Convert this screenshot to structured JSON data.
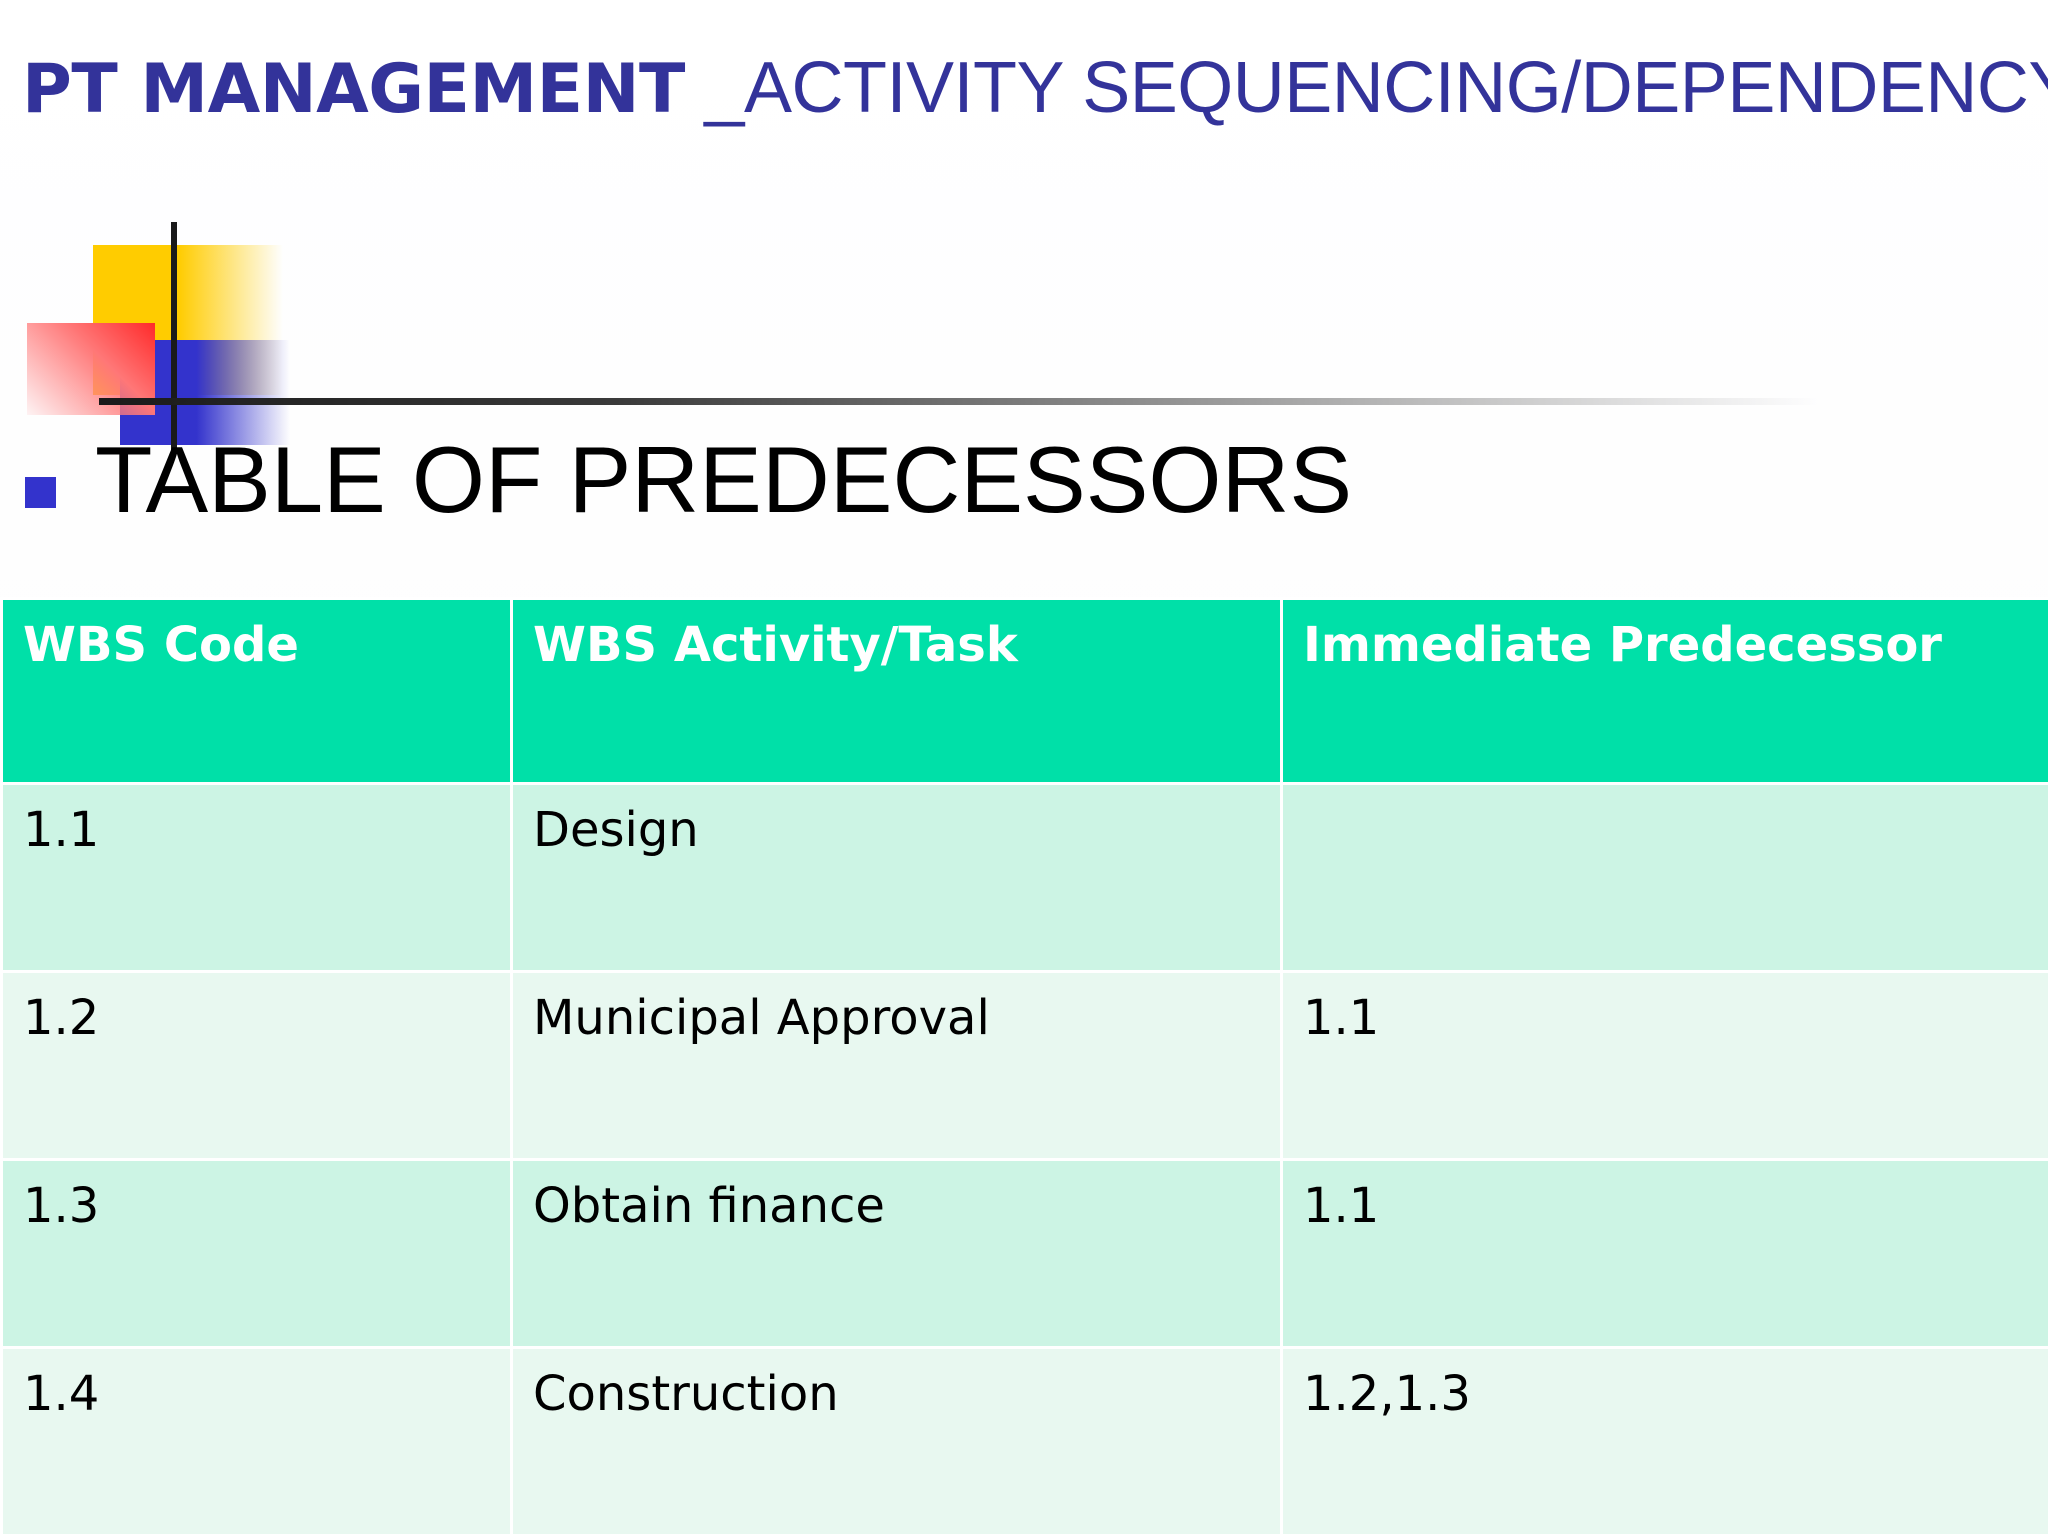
{
  "slide": {
    "title_bold": "PT MANAGEMENT",
    "title_rest": " _ACTIVITY SEQUENCING/DEPENDENCY",
    "bullet_text": "TABLE OF PREDECESSORS"
  },
  "colors": {
    "title": "#33339a",
    "header_bg": "#00e0a8",
    "row_odd_bg": "#ccf4e4",
    "row_even_bg": "#e8f8f0",
    "bullet": "#3333cc"
  },
  "table": {
    "headers": [
      "WBS Code",
      "WBS Activity/Task",
      "Immediate Predecessor"
    ],
    "rows": [
      {
        "code": "1.1",
        "task": "Design",
        "predecessor": ""
      },
      {
        "code": "1.2",
        "task": "Municipal Approval",
        "predecessor": "1.1"
      },
      {
        "code": "1.3",
        "task": "Obtain finance",
        "predecessor": "1.1"
      },
      {
        "code": "1.4",
        "task": "Construction",
        "predecessor": "1.2,1.3"
      }
    ]
  }
}
